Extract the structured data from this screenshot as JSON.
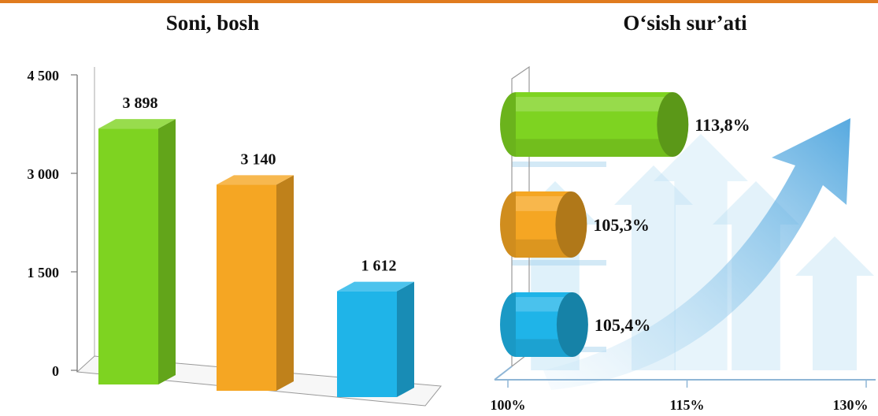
{
  "chart_data": [
    {
      "type": "bar",
      "title": "Soni, bosh",
      "categories": [
        "",
        "",
        ""
      ],
      "values": [
        3898,
        3140,
        1612
      ],
      "value_labels": [
        "3 898",
        "3 140",
        "1 612"
      ],
      "colors": [
        "#7ed321",
        "#f5a623",
        "#1fb4e8"
      ],
      "ylim": [
        0,
        4500
      ],
      "yticks": [
        0,
        1500,
        3000,
        4500
      ],
      "ytick_labels": [
        "0",
        "1 500",
        "3 000",
        "4 500"
      ],
      "xlabel": "",
      "ylabel": "",
      "grid": false,
      "legend": "none"
    },
    {
      "type": "bar",
      "orientation": "horizontal",
      "title": "O‘sish sur’ati",
      "categories": [
        "",
        "",
        ""
      ],
      "values": [
        113.8,
        105.3,
        105.4
      ],
      "value_labels": [
        "113,8%",
        "105,3%",
        "105,4%"
      ],
      "colors": [
        "#7ed321",
        "#f5a623",
        "#1fb4e8"
      ],
      "xlim": [
        100,
        130
      ],
      "xticks": [
        100,
        115,
        130
      ],
      "xtick_labels": [
        "100%",
        "115%",
        "130%"
      ],
      "xlabel": "",
      "ylabel": "",
      "grid": false,
      "legend": "none"
    }
  ]
}
